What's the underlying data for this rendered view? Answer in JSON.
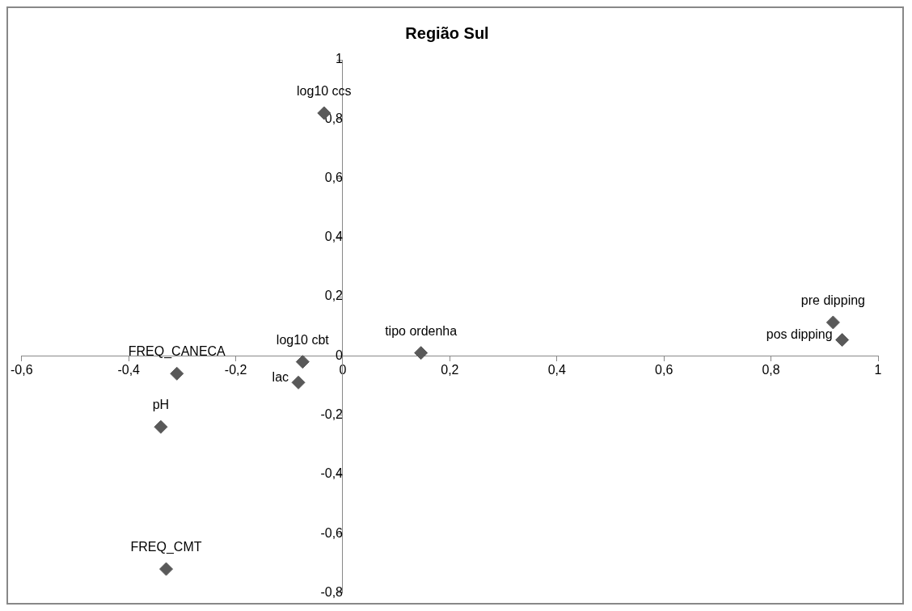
{
  "chart_data": {
    "type": "scatter",
    "title": "Região Sul",
    "marker": "diamond",
    "grid": false,
    "legend": false,
    "xlim": [
      -0.6,
      1
    ],
    "ylim": [
      -0.8,
      1
    ],
    "xticks": [
      {
        "value": -0.6,
        "label": "-0,6"
      },
      {
        "value": -0.4,
        "label": "-0,4"
      },
      {
        "value": -0.2,
        "label": "-0,2"
      },
      0,
      {
        "value": 0.2,
        "label": "0,2"
      },
      {
        "value": 0.4,
        "label": "0,4"
      },
      {
        "value": 0.6,
        "label": "0,6"
      },
      {
        "value": 0.8,
        "label": "0,8"
      },
      1
    ],
    "yticks": [
      {
        "value": -0.8,
        "label": "-0,8"
      },
      {
        "value": -0.6,
        "label": "-0,6"
      },
      {
        "value": -0.4,
        "label": "-0,4"
      },
      {
        "value": -0.2,
        "label": "-0,2"
      },
      0,
      {
        "value": 0.2,
        "label": "0,2"
      },
      {
        "value": 0.4,
        "label": "0,4"
      },
      {
        "value": 0.6,
        "label": "0,6"
      },
      {
        "value": 0.8,
        "label": "0,8"
      },
      1
    ],
    "series": [
      {
        "name": "log10 ccs",
        "color": "#595959",
        "x": [
          -0.035
        ],
        "values": [
          0.82
        ]
      },
      {
        "name": "FREQ_CANECA",
        "color": "#595959",
        "x": [
          -0.31
        ],
        "values": [
          -0.06
        ]
      },
      {
        "name": "pH",
        "color": "#595959",
        "x": [
          -0.34
        ],
        "values": [
          -0.24
        ]
      },
      {
        "name": "FREQ_CMT",
        "color": "#595959",
        "x": [
          -0.33
        ],
        "values": [
          -0.72
        ]
      },
      {
        "name": "log10 cbt",
        "color": "#595959",
        "x": [
          -0.075
        ],
        "values": [
          -0.02
        ]
      },
      {
        "name": "lac",
        "color": "#595959",
        "x": [
          -0.083
        ],
        "values": [
          -0.09
        ]
      },
      {
        "name": "tipo ordenha",
        "color": "#595959",
        "x": [
          0.146
        ],
        "values": [
          0.01
        ]
      },
      {
        "name": "pre dipping",
        "color": "#595959",
        "x": [
          0.916
        ],
        "values": [
          0.113
        ]
      },
      {
        "name": "pos dipping",
        "color": "#595959",
        "x": [
          0.933
        ],
        "values": [
          0.054
        ]
      }
    ]
  }
}
